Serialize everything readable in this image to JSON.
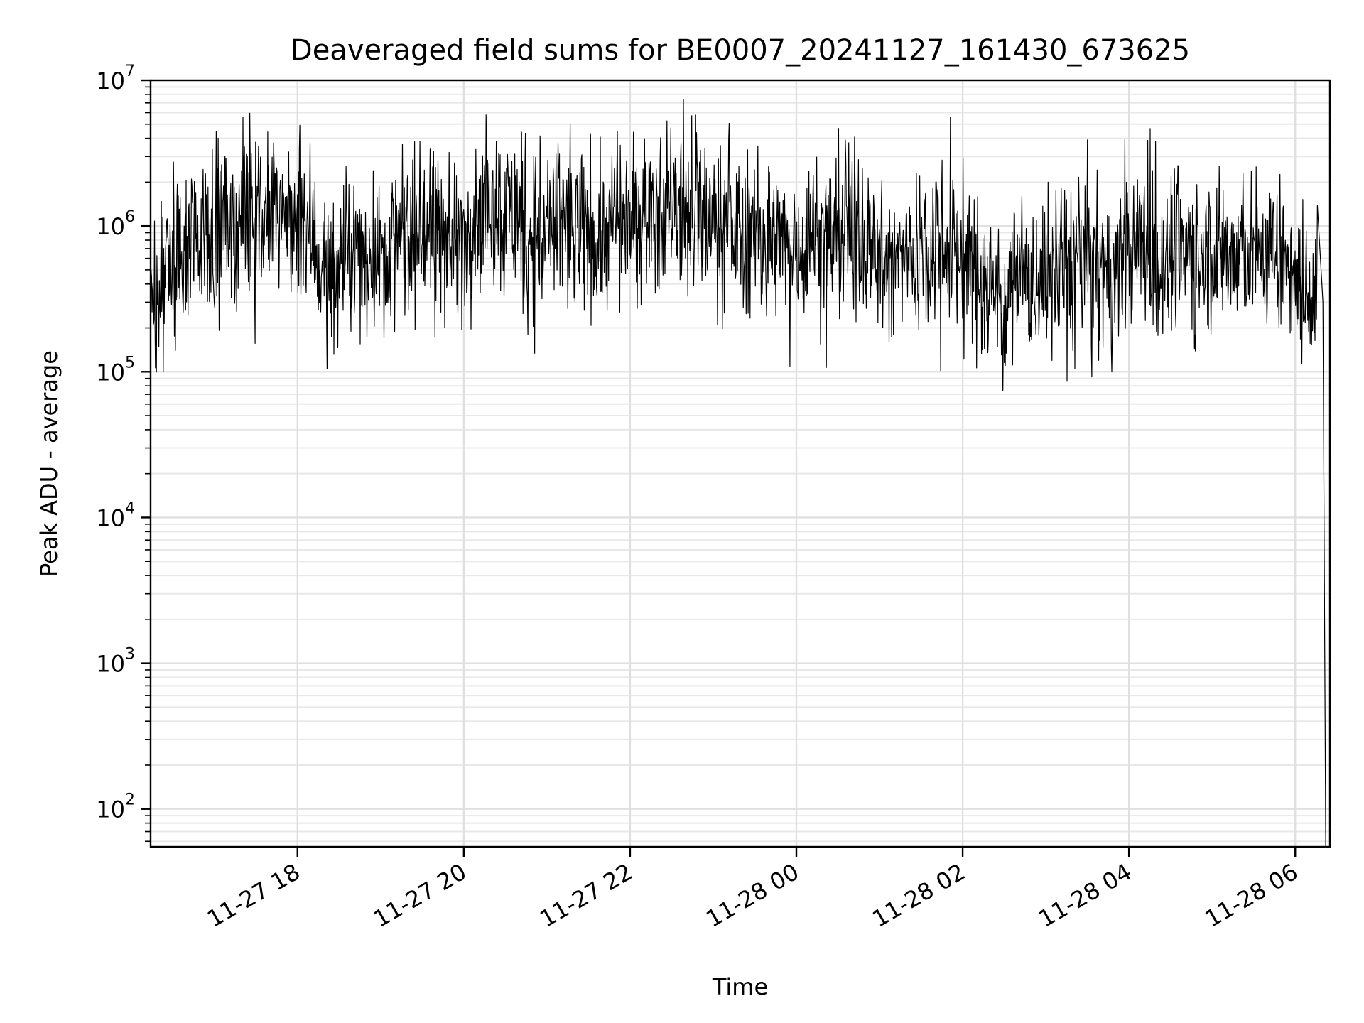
{
  "chart_data": {
    "type": "line",
    "title": "Deaveraged field sums for BE0007_20241127_161430_673625",
    "xlabel": "Time",
    "ylabel": "Peak ADU - average",
    "yscale": "log",
    "ylim": [
      55,
      10000000
    ],
    "xlim": [
      "2024-11-27 16:14",
      "2024-11-28 06:25"
    ],
    "grid": true,
    "line_color": "#000000",
    "x_ticks": [
      {
        "time": "2024-11-27 18:00",
        "label": "11-27 18"
      },
      {
        "time": "2024-11-27 20:00",
        "label": "11-27 20"
      },
      {
        "time": "2024-11-27 22:00",
        "label": "11-27 22"
      },
      {
        "time": "2024-11-28 00:00",
        "label": "11-28 00"
      },
      {
        "time": "2024-11-28 02:00",
        "label": "11-28 02"
      },
      {
        "time": "2024-11-28 04:00",
        "label": "11-28 04"
      },
      {
        "time": "2024-11-28 06:00",
        "label": "11-28 06"
      }
    ],
    "y_ticks": [
      {
        "value": 100,
        "base": "10",
        "exp": "2"
      },
      {
        "value": 1000,
        "base": "10",
        "exp": "3"
      },
      {
        "value": 10000,
        "base": "10",
        "exp": "4"
      },
      {
        "value": 100000,
        "base": "10",
        "exp": "5"
      },
      {
        "value": 1000000,
        "base": "10",
        "exp": "6"
      },
      {
        "value": 10000000,
        "base": "10",
        "exp": "7"
      }
    ],
    "series": [
      {
        "x": [
          "2024-11-27 16:14",
          "2024-11-27 16:30",
          "2024-11-27 16:50",
          "2024-11-27 17:10",
          "2024-11-27 17:30",
          "2024-11-27 17:50",
          "2024-11-27 18:10",
          "2024-11-27 18:20",
          "2024-11-27 18:40",
          "2024-11-27 19:00",
          "2024-11-27 19:20",
          "2024-11-27 19:40",
          "2024-11-27 19:55",
          "2024-11-27 20:15",
          "2024-11-27 20:35",
          "2024-11-27 20:55",
          "2024-11-27 21:15",
          "2024-11-27 21:35",
          "2024-11-27 21:55",
          "2024-11-27 22:15",
          "2024-11-27 22:35",
          "2024-11-27 22:55",
          "2024-11-27 23:15",
          "2024-11-27 23:35",
          "2024-11-27 23:55",
          "2024-11-28 00:15",
          "2024-11-28 00:35",
          "2024-11-28 00:55",
          "2024-11-28 01:05",
          "2024-11-28 01:25",
          "2024-11-28 01:45",
          "2024-11-28 02:05",
          "2024-11-28 02:25",
          "2024-11-28 02:45",
          "2024-11-28 03:05",
          "2024-11-28 03:25",
          "2024-11-28 03:45",
          "2024-11-28 04:05",
          "2024-11-28 04:25",
          "2024-11-28 04:45",
          "2024-11-28 05:05",
          "2024-11-28 05:25",
          "2024-11-28 05:45",
          "2024-11-28 06:00",
          "2024-11-28 06:10",
          "2024-11-28 06:16",
          "2024-11-28 06:20",
          "2024-11-28 06:22"
        ],
        "y": [
          250000,
          600000,
          900000,
          1000000,
          1100000,
          1200000,
          900000,
          450000,
          600000,
          700000,
          800000,
          1000000,
          700000,
          1500000,
          1200000,
          900000,
          1000000,
          800000,
          1100000,
          1300000,
          1400000,
          1200000,
          900000,
          800000,
          700000,
          900000,
          1000000,
          800000,
          500000,
          700000,
          900000,
          500000,
          350000,
          400000,
          500000,
          600000,
          450000,
          700000,
          600000,
          700000,
          650000,
          600000,
          700000,
          500000,
          250000,
          700000,
          300000,
          60
        ]
      }
    ]
  }
}
